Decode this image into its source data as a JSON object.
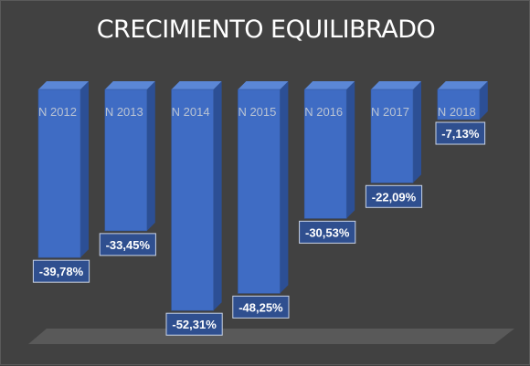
{
  "chart_data": {
    "type": "bar",
    "title": "CRECIMIENTO EQUILIBRADO",
    "categories": [
      "N 2012",
      "N 2013",
      "N 2014",
      "N 2015",
      "N 2016",
      "N 2017",
      "N 2018"
    ],
    "values": [
      -39.78,
      -33.45,
      -52.31,
      -48.25,
      -30.53,
      -22.09,
      -7.13
    ],
    "data_labels": [
      "-39,78%",
      "-33,45%",
      "-52,31%",
      "-48,25%",
      "-30,53%",
      "-22,09%",
      "-7,13%"
    ],
    "ylim": [
      -60,
      0
    ],
    "grid": false,
    "legend": "none",
    "bar_3d": true
  },
  "colors": {
    "background": "#414141",
    "bar_front": "#3f6cc4",
    "bar_side": "#2c4f95",
    "bar_top": "#5b87d6",
    "label_bg": "#2f4f8f",
    "floor": "#5e5e5e"
  }
}
